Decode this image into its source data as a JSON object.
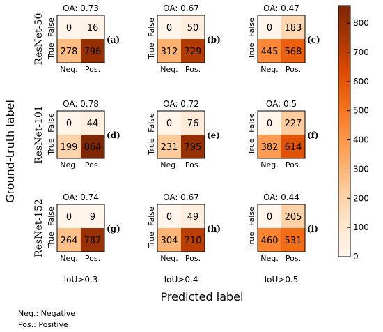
{
  "chart_data": {
    "type": "heatmap",
    "xlabel": "Predicted label",
    "ylabel": "Ground-truth label",
    "x_ticks": [
      "Neg.",
      "Pos."
    ],
    "y_ticks": [
      "False",
      "True"
    ],
    "columns": [
      "IoU>0.3",
      "IoU>0.4",
      "IoU>0.5"
    ],
    "rows": [
      "ResNet-50",
      "ResNet-101",
      "ResNet-152"
    ],
    "oa_prefix": "OA:",
    "colorbar": {
      "min": 0,
      "max": 860,
      "ticks": [
        0,
        100,
        200,
        300,
        400,
        500,
        600,
        700,
        800
      ],
      "colormap": "Oranges"
    },
    "panels": [
      {
        "letter": "(a)",
        "oa": "0.73",
        "matrix": [
          [
            0,
            16
          ],
          [
            278,
            796
          ]
        ]
      },
      {
        "letter": "(b)",
        "oa": "0.67",
        "matrix": [
          [
            0,
            50
          ],
          [
            312,
            729
          ]
        ]
      },
      {
        "letter": "(c)",
        "oa": "0.47",
        "matrix": [
          [
            0,
            183
          ],
          [
            445,
            568
          ]
        ]
      },
      {
        "letter": "(d)",
        "oa": "0.78",
        "matrix": [
          [
            0,
            44
          ],
          [
            199,
            864
          ]
        ]
      },
      {
        "letter": "(e)",
        "oa": "0.72",
        "matrix": [
          [
            0,
            76
          ],
          [
            231,
            795
          ]
        ]
      },
      {
        "letter": "(f)",
        "oa": "0.5",
        "matrix": [
          [
            0,
            227
          ],
          [
            382,
            614
          ]
        ]
      },
      {
        "letter": "(g)",
        "oa": "0.74",
        "matrix": [
          [
            0,
            9
          ],
          [
            264,
            787
          ]
        ]
      },
      {
        "letter": "(h)",
        "oa": "0.67",
        "matrix": [
          [
            0,
            49
          ],
          [
            304,
            710
          ]
        ]
      },
      {
        "letter": "(i)",
        "oa": "0.44",
        "matrix": [
          [
            0,
            205
          ],
          [
            460,
            531
          ]
        ]
      }
    ]
  },
  "notes": [
    "Neg.: Negative",
    "Pos.: Positive"
  ]
}
